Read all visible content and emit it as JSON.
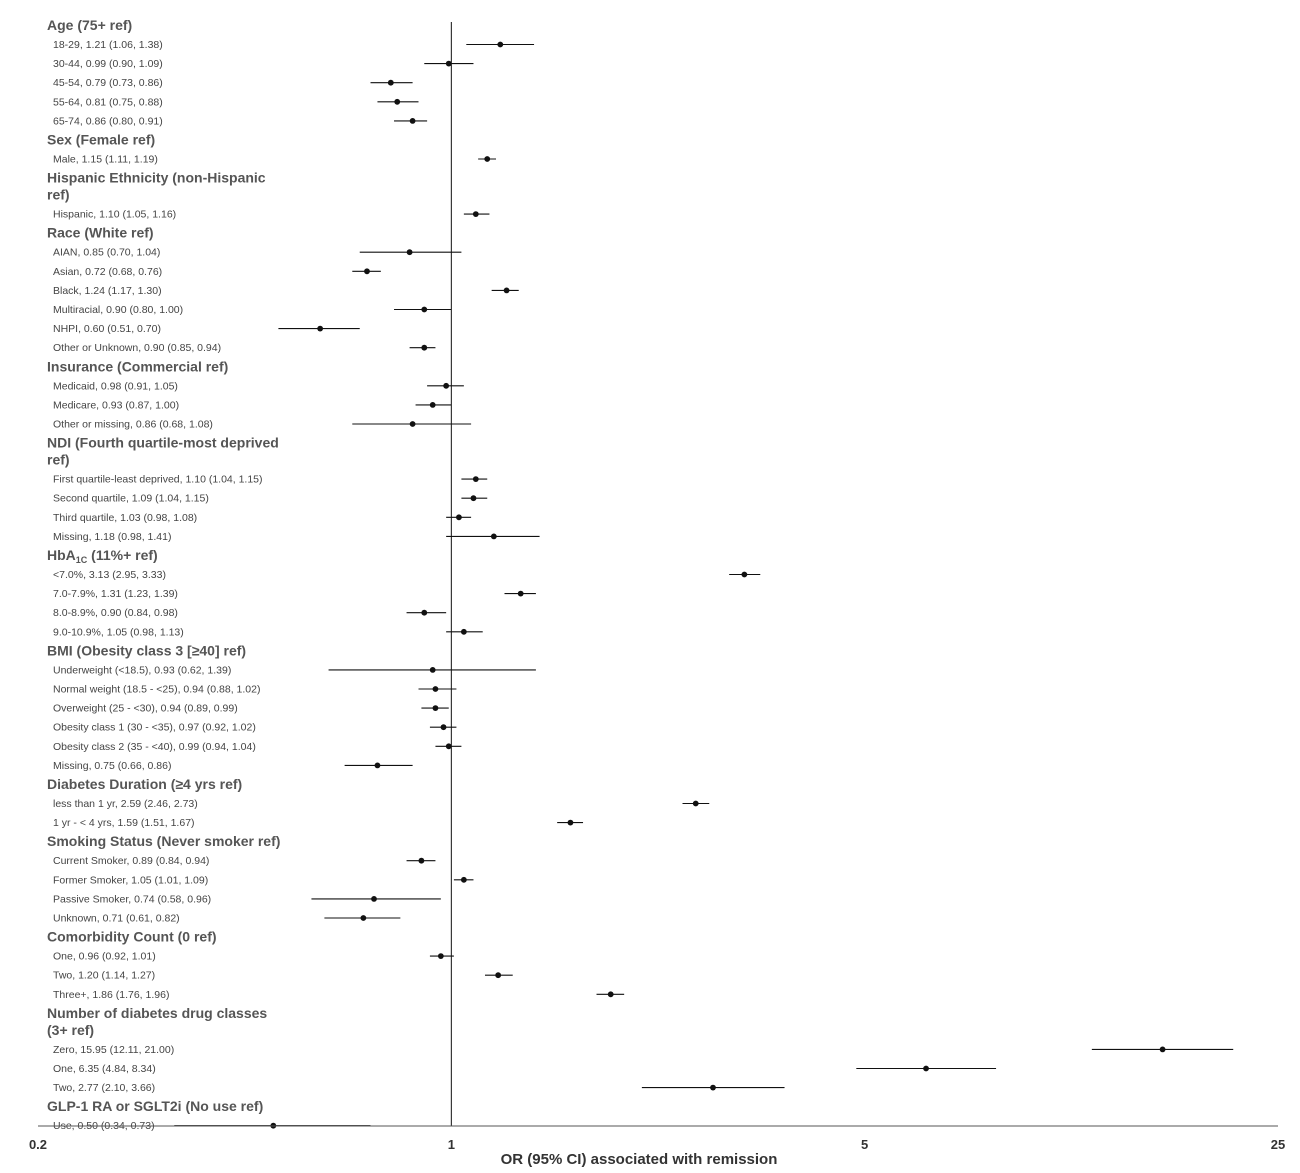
{
  "chart_data": {
    "type": "forest",
    "xlabel": "OR (95% CI) associated with remission",
    "xscale": "log",
    "xlim": [
      0.2,
      25
    ],
    "xticks": [
      "0.2",
      "1",
      "5",
      "25"
    ],
    "reference_line": 1,
    "groups": [
      {
        "title": [
          "Age (75+ ref)"
        ],
        "rows": [
          {
            "label": "18-29, 1.21 (1.06, 1.38)",
            "or": 1.21,
            "lo": 1.06,
            "hi": 1.38
          },
          {
            "label": "30-44, 0.99 (0.90, 1.09)",
            "or": 0.99,
            "lo": 0.9,
            "hi": 1.09
          },
          {
            "label": "45-54, 0.79 (0.73, 0.86)",
            "or": 0.79,
            "lo": 0.73,
            "hi": 0.86
          },
          {
            "label": "55-64, 0.81 (0.75, 0.88)",
            "or": 0.81,
            "lo": 0.75,
            "hi": 0.88
          },
          {
            "label": "65-74, 0.86 (0.80, 0.91)",
            "or": 0.86,
            "lo": 0.8,
            "hi": 0.91
          }
        ]
      },
      {
        "title": [
          "Sex (Female ref)"
        ],
        "rows": [
          {
            "label": "Male, 1.15 (1.11, 1.19)",
            "or": 1.15,
            "lo": 1.11,
            "hi": 1.19
          }
        ]
      },
      {
        "title": [
          "Hispanic Ethnicity (non-Hispanic",
          "ref)"
        ],
        "rows": [
          {
            "label": "Hispanic, 1.10 (1.05, 1.16)",
            "or": 1.1,
            "lo": 1.05,
            "hi": 1.16
          }
        ]
      },
      {
        "title": [
          "Race (White ref)"
        ],
        "rows": [
          {
            "label": "AIAN, 0.85 (0.70, 1.04)",
            "or": 0.85,
            "lo": 0.7,
            "hi": 1.04
          },
          {
            "label": "Asian, 0.72 (0.68, 0.76)",
            "or": 0.72,
            "lo": 0.68,
            "hi": 0.76
          },
          {
            "label": "Black, 1.24 (1.17, 1.30)",
            "or": 1.24,
            "lo": 1.17,
            "hi": 1.3
          },
          {
            "label": "Multiracial, 0.90 (0.80, 1.00)",
            "or": 0.9,
            "lo": 0.8,
            "hi": 1.0
          },
          {
            "label": "NHPI, 0.60 (0.51, 0.70)",
            "or": 0.6,
            "lo": 0.51,
            "hi": 0.7
          },
          {
            "label": "Other or Unknown, 0.90 (0.85, 0.94)",
            "or": 0.9,
            "lo": 0.85,
            "hi": 0.94
          }
        ]
      },
      {
        "title": [
          "Insurance (Commercial ref)"
        ],
        "rows": [
          {
            "label": "Medicaid, 0.98 (0.91, 1.05)",
            "or": 0.98,
            "lo": 0.91,
            "hi": 1.05
          },
          {
            "label": "Medicare, 0.93 (0.87, 1.00)",
            "or": 0.93,
            "lo": 0.87,
            "hi": 1.0
          },
          {
            "label": "Other or missing, 0.86 (0.68, 1.08)",
            "or": 0.86,
            "lo": 0.68,
            "hi": 1.08
          }
        ]
      },
      {
        "title": [
          "NDI (Fourth quartile-most deprived",
          "ref)"
        ],
        "rows": [
          {
            "label": "First quartile-least deprived, 1.10 (1.04, 1.15)",
            "or": 1.1,
            "lo": 1.04,
            "hi": 1.15
          },
          {
            "label": "Second quartile, 1.09 (1.04, 1.15)",
            "or": 1.09,
            "lo": 1.04,
            "hi": 1.15
          },
          {
            "label": "Third quartile, 1.03 (0.98, 1.08)",
            "or": 1.03,
            "lo": 0.98,
            "hi": 1.08
          },
          {
            "label": "Missing, 1.18 (0.98, 1.41)",
            "or": 1.18,
            "lo": 0.98,
            "hi": 1.41
          }
        ]
      },
      {
        "title": [
          "HbA1C (11%+ ref)"
        ],
        "rows": [
          {
            "label": "<7.0%, 3.13 (2.95, 3.33)",
            "or": 3.13,
            "lo": 2.95,
            "hi": 3.33
          },
          {
            "label": "7.0-7.9%, 1.31 (1.23, 1.39)",
            "or": 1.31,
            "lo": 1.23,
            "hi": 1.39
          },
          {
            "label": "8.0-8.9%, 0.90 (0.84, 0.98)",
            "or": 0.9,
            "lo": 0.84,
            "hi": 0.98
          },
          {
            "label": "9.0-10.9%, 1.05 (0.98, 1.13)",
            "or": 1.05,
            "lo": 0.98,
            "hi": 1.13
          }
        ]
      },
      {
        "title": [
          "BMI (Obesity class 3 [≥40] ref)"
        ],
        "rows": [
          {
            "label": "Underweight (<18.5), 0.93 (0.62, 1.39)",
            "or": 0.93,
            "lo": 0.62,
            "hi": 1.39
          },
          {
            "label": "Normal weight (18.5 - <25), 0.94 (0.88, 1.02)",
            "or": 0.94,
            "lo": 0.88,
            "hi": 1.02
          },
          {
            "label": "Overweight (25 - <30), 0.94 (0.89, 0.99)",
            "or": 0.94,
            "lo": 0.89,
            "hi": 0.99
          },
          {
            "label": "Obesity class 1 (30 - <35), 0.97 (0.92, 1.02)",
            "or": 0.97,
            "lo": 0.92,
            "hi": 1.02
          },
          {
            "label": "Obesity class 2 (35 - <40), 0.99 (0.94, 1.04)",
            "or": 0.99,
            "lo": 0.94,
            "hi": 1.04
          },
          {
            "label": "Missing, 0.75 (0.66, 0.86)",
            "or": 0.75,
            "lo": 0.66,
            "hi": 0.86
          }
        ]
      },
      {
        "title": [
          "Diabetes Duration (≥4 yrs ref)"
        ],
        "rows": [
          {
            "label": "less than 1 yr, 2.59 (2.46, 2.73)",
            "or": 2.59,
            "lo": 2.46,
            "hi": 2.73
          },
          {
            "label": "1 yr - < 4 yrs, 1.59 (1.51, 1.67)",
            "or": 1.59,
            "lo": 1.51,
            "hi": 1.67
          }
        ]
      },
      {
        "title": [
          "Smoking Status (Never smoker ref)"
        ],
        "rows": [
          {
            "label": "Current Smoker, 0.89 (0.84, 0.94)",
            "or": 0.89,
            "lo": 0.84,
            "hi": 0.94
          },
          {
            "label": "Former Smoker, 1.05 (1.01, 1.09)",
            "or": 1.05,
            "lo": 1.01,
            "hi": 1.09
          },
          {
            "label": "Passive Smoker, 0.74 (0.58, 0.96)",
            "or": 0.74,
            "lo": 0.58,
            "hi": 0.96
          },
          {
            "label": "Unknown, 0.71 (0.61, 0.82)",
            "or": 0.71,
            "lo": 0.61,
            "hi": 0.82
          }
        ]
      },
      {
        "title": [
          "Comorbidity Count (0 ref)"
        ],
        "rows": [
          {
            "label": "One, 0.96 (0.92, 1.01)",
            "or": 0.96,
            "lo": 0.92,
            "hi": 1.01
          },
          {
            "label": "Two, 1.20 (1.14, 1.27)",
            "or": 1.2,
            "lo": 1.14,
            "hi": 1.27
          },
          {
            "label": "Three+, 1.86 (1.76, 1.96)",
            "or": 1.86,
            "lo": 1.76,
            "hi": 1.96
          }
        ]
      },
      {
        "title": [
          "Number of diabetes drug classes",
          "(3+ ref)"
        ],
        "rows": [
          {
            "label": "Zero, 15.95 (12.11, 21.00)",
            "or": 15.95,
            "lo": 12.11,
            "hi": 21.0
          },
          {
            "label": "One, 6.35 (4.84, 8.34)",
            "or": 6.35,
            "lo": 4.84,
            "hi": 8.34
          },
          {
            "label": "Two, 2.77 (2.10, 3.66)",
            "or": 2.77,
            "lo": 2.1,
            "hi": 3.66
          }
        ]
      },
      {
        "title": [
          "GLP-1 RA or SGLT2i (No use ref)"
        ],
        "rows": [
          {
            "label": "Use, 0.50 (0.34, 0.73)",
            "or": 0.5,
            "lo": 0.34,
            "hi": 0.73
          }
        ]
      }
    ]
  }
}
